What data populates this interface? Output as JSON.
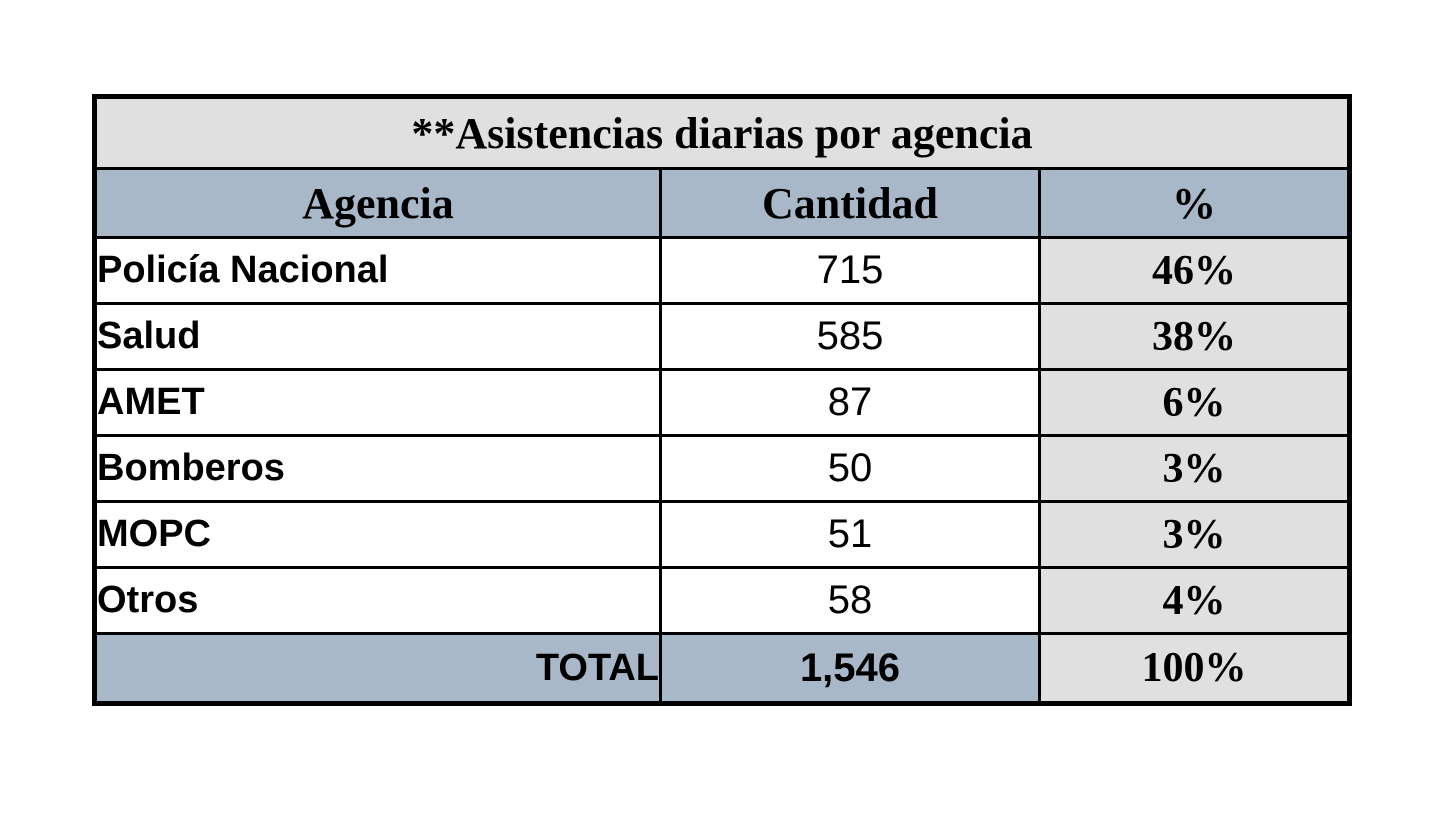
{
  "colors": {
    "header_bg": "#a9b8c9",
    "title_bg": "#e0e0e1",
    "pct_bg": "#e0e0e1",
    "border": "#000000",
    "page_bg": "#ffffff"
  },
  "table": {
    "title": "**Asistencias diarias por agencia",
    "columns": [
      "Agencia",
      "Cantidad",
      "%"
    ],
    "rows": [
      {
        "agencia": "Policía Nacional",
        "cantidad": "715",
        "porcentaje": "46%"
      },
      {
        "agencia": "Salud",
        "cantidad": "585",
        "porcentaje": "38%"
      },
      {
        "agencia": "AMET",
        "cantidad": "87",
        "porcentaje": "6%"
      },
      {
        "agencia": "Bomberos",
        "cantidad": "50",
        "porcentaje": "3%"
      },
      {
        "agencia": "MOPC",
        "cantidad": "51",
        "porcentaje": "3%"
      },
      {
        "agencia": "Otros",
        "cantidad": "58",
        "porcentaje": "4%"
      }
    ],
    "total_row": {
      "label": "TOTAL",
      "cantidad": "1,546",
      "porcentaje": "100%"
    }
  },
  "chart_data": {
    "type": "table",
    "title": "**Asistencias diarias por agencia",
    "columns": [
      "Agencia",
      "Cantidad",
      "%"
    ],
    "rows": [
      [
        "Policía Nacional",
        715,
        "46%"
      ],
      [
        "Salud",
        585,
        "38%"
      ],
      [
        "AMET",
        87,
        "6%"
      ],
      [
        "Bomberos",
        50,
        "3%"
      ],
      [
        "MOPC",
        51,
        "3%"
      ],
      [
        "Otros",
        58,
        "4%"
      ]
    ],
    "total": [
      "TOTAL",
      1546,
      "100%"
    ]
  }
}
